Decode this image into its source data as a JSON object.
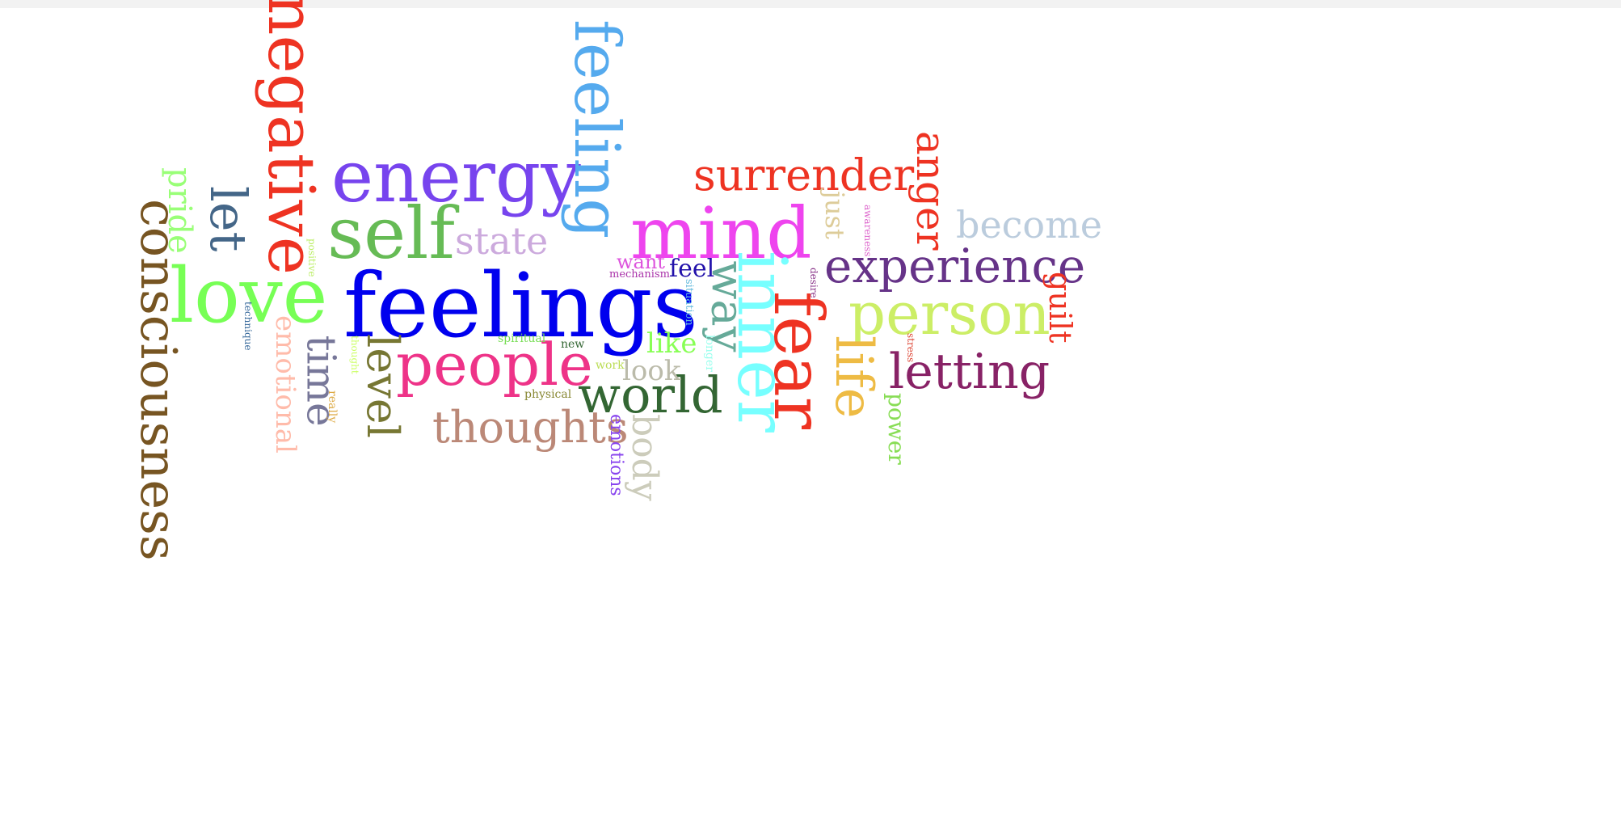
{
  "colors": {
    "background": "#ffffff",
    "top_bar": "#f2f2f2"
  },
  "words": [
    {
      "text": "feelings",
      "color": "#0000ee"
    },
    {
      "text": "love",
      "color": "#77ff55"
    },
    {
      "text": "energy",
      "color": "#7744ee"
    },
    {
      "text": "self",
      "color": "#66bb55"
    },
    {
      "text": "mind",
      "color": "#ee44ee"
    },
    {
      "text": "feeling",
      "color": "#55aaee"
    },
    {
      "text": "negative",
      "color": "#ee3322"
    },
    {
      "text": "consciousness",
      "color": "#775522"
    },
    {
      "text": "inner",
      "color": "#77ffff"
    },
    {
      "text": "fear",
      "color": "#ee3322"
    },
    {
      "text": "person",
      "color": "#ccee66"
    },
    {
      "text": "people",
      "color": "#ee3388"
    },
    {
      "text": "surrender",
      "color": "#ee3322"
    },
    {
      "text": "experience",
      "color": "#663388"
    },
    {
      "text": "world",
      "color": "#336633"
    },
    {
      "text": "letting",
      "color": "#882266"
    },
    {
      "text": "life",
      "color": "#eebb44"
    },
    {
      "text": "thoughts",
      "color": "#bb8877"
    },
    {
      "text": "anger",
      "color": "#ee3322"
    },
    {
      "text": "let",
      "color": "#446688"
    },
    {
      "text": "become",
      "color": "#bbccdd"
    },
    {
      "text": "level",
      "color": "#777733"
    },
    {
      "text": "time",
      "color": "#777799"
    },
    {
      "text": "state",
      "color": "#ccaadd"
    },
    {
      "text": "way",
      "color": "#66aa99"
    },
    {
      "text": "pride",
      "color": "#99ff77"
    },
    {
      "text": "emotional",
      "color": "#ffbbaa"
    },
    {
      "text": "body",
      "color": "#ccccbb"
    },
    {
      "text": "guilt",
      "color": "#ee3322"
    },
    {
      "text": "just",
      "color": "#ddcc99"
    },
    {
      "text": "look",
      "color": "#bbbbaa"
    },
    {
      "text": "like",
      "color": "#88ff55"
    },
    {
      "text": "want",
      "color": "#dd55dd"
    },
    {
      "text": "feel",
      "color": "#2211aa"
    },
    {
      "text": "power",
      "color": "#88dd55"
    },
    {
      "text": "emotions",
      "color": "#8844ee"
    },
    {
      "text": "longer",
      "color": "#99ffee"
    },
    {
      "text": "situation",
      "color": "#66bbdd"
    },
    {
      "text": "mechanism",
      "color": "#aa33aa"
    },
    {
      "text": "positive",
      "color": "#bbee66"
    },
    {
      "text": "technique",
      "color": "#336699"
    },
    {
      "text": "thought",
      "color": "#ccff66"
    },
    {
      "text": "really",
      "color": "#ddaa44"
    },
    {
      "text": "spiritual",
      "color": "#77dd55"
    },
    {
      "text": "new",
      "color": "#336633"
    },
    {
      "text": "work",
      "color": "#bbdd55"
    },
    {
      "text": "physical",
      "color": "#888833"
    },
    {
      "text": "awareness",
      "color": "#dd66cc"
    },
    {
      "text": "desire",
      "color": "#883388"
    },
    {
      "text": "stress",
      "color": "#dd4433"
    }
  ]
}
